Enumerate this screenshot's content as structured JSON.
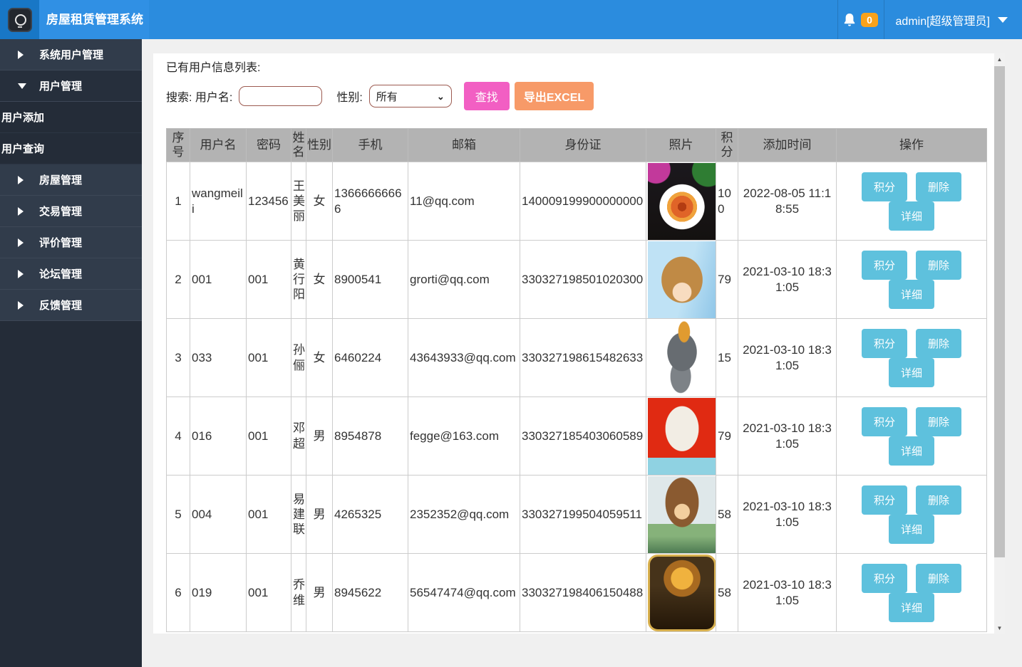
{
  "topbar": {
    "brand": "房屋租赁管理系统",
    "notification_count": "0",
    "admin_label": "admin[超级管理员]"
  },
  "sidebar": {
    "items": [
      {
        "label": "系统用户管理",
        "type": "group"
      },
      {
        "label": "用户管理",
        "type": "group-expanded"
      },
      {
        "label": "用户添加",
        "type": "sub"
      },
      {
        "label": "用户查询",
        "type": "sub"
      },
      {
        "label": "房屋管理",
        "type": "group"
      },
      {
        "label": "交易管理",
        "type": "group"
      },
      {
        "label": "评价管理",
        "type": "group"
      },
      {
        "label": "论坛管理",
        "type": "group"
      },
      {
        "label": "反馈管理",
        "type": "group"
      }
    ]
  },
  "main": {
    "list_title": "已有用户信息列表:",
    "search": {
      "keyword_label": "搜索: 用户名:",
      "keyword_value": "",
      "gender_label": "性别:",
      "gender_value": "所有",
      "find_button": "查找",
      "export_button": "导出EXCEL"
    },
    "table": {
      "headers": [
        "序号",
        "用户名",
        "密码",
        "姓名",
        "性别",
        "手机",
        "邮箱",
        "身份证",
        "照片",
        "积分",
        "添加时间",
        "操作"
      ],
      "action_labels": [
        "积分",
        "删除",
        "详细"
      ],
      "rows": [
        {
          "no": "1",
          "username": "wangmeili",
          "password": "123456",
          "name": "王美丽",
          "gender": "女",
          "phone": "13666666666",
          "email": "11@qq.com",
          "id_card": "140009199900000000",
          "photo": "food-dish",
          "points": "100",
          "added": "2022-08-05 11:18:55"
        },
        {
          "no": "2",
          "username": "001",
          "password": "001",
          "name": "黄行阳",
          "gender": "女",
          "phone": "8900541",
          "email": "grorti@qq.com",
          "id_card": "330327198501020300",
          "photo": "anime-girl",
          "points": "79",
          "added": "2021-03-10 18:31:05"
        },
        {
          "no": "3",
          "username": "033",
          "password": "001",
          "name": "孙俪",
          "gender": "女",
          "phone": "6460224",
          "email": "43643933@qq.com",
          "id_card": "330327198615482633",
          "photo": "gray-wolf",
          "points": "15",
          "added": "2021-03-10 18:31:05"
        },
        {
          "no": "4",
          "username": "016",
          "password": "001",
          "name": "邓超",
          "gender": "男",
          "phone": "8954878",
          "email": "fegge@163.com",
          "id_card": "330327185403060589",
          "photo": "cartoon-red",
          "points": "79",
          "added": "2021-03-10 18:31:05"
        },
        {
          "no": "5",
          "username": "004",
          "password": "001",
          "name": "易建联",
          "gender": "男",
          "phone": "4265325",
          "email": "2352352@qq.com",
          "id_card": "330327199504059511",
          "photo": "anime-man",
          "points": "58",
          "added": "2021-03-10 18:31:05"
        },
        {
          "no": "6",
          "username": "019",
          "password": "001",
          "name": "乔维",
          "gender": "男",
          "phone": "8945622",
          "email": "56547474@qq.com",
          "id_card": "330327198406150488",
          "photo": "vegeta-card",
          "points": "58",
          "added": "2021-03-10 18:31:05"
        }
      ]
    }
  },
  "colors": {
    "topbar_blue": "#2b8cde",
    "sidebar_dark": "#313c4b",
    "header_gray": "#b3b3b3",
    "find_pink": "#f25fc3",
    "export_orange": "#f79a68",
    "action_blue": "#5ec1dd",
    "badge_orange": "#f9a21b"
  }
}
